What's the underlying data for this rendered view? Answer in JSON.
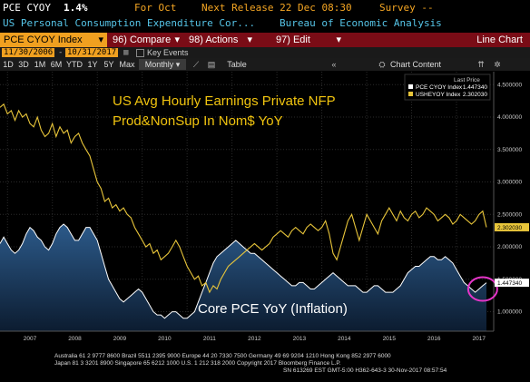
{
  "header": {
    "ticker": "PCE CYOY",
    "last": "1.4%",
    "period": "For Oct",
    "next_release": "Next Release 22 Dec 08:30",
    "survey": "Survey --",
    "description": "US Personal Consumption Expenditure Cor...",
    "source": "Bureau of Economic Analysis"
  },
  "toolbar": {
    "security": "PCE CYOY Index",
    "compare": "96) Compare",
    "actions": "98) Actions",
    "edit": "97) Edit",
    "chart_type": "Line Chart"
  },
  "date_bar": {
    "start": "11/30/2006",
    "end": "10/31/2017",
    "key_events": "Key Events"
  },
  "controls": {
    "ranges": [
      "1D",
      "3D",
      "1M",
      "6M",
      "YTD",
      "1Y",
      "5Y",
      "Max"
    ],
    "frequency": "Monthly",
    "table": "Table",
    "chart_content": "Chart Content"
  },
  "legend": {
    "title": "Last Price",
    "items": [
      {
        "name": "PCE CYOY Index",
        "value": "1.447340",
        "color": "#ffffff"
      },
      {
        "name": "USHEYOY Index",
        "value": "2.302030",
        "color": "#e8c53a"
      }
    ]
  },
  "annotations": {
    "earnings_line1": "US Avg Hourly Earnings Private NFP",
    "earnings_line2": "Prod&NonSup In Nom$ YoY",
    "pce_label": "Core PCE YoY (Inflation)"
  },
  "footer": {
    "line1": "Australia 61 2 9777 8600 Brazil 5511 2395 9000 Europe 44 20 7330 7500 Germany 49 69 9204 1210 Hong Kong 852 2977 6000",
    "line2": "Japan 81 3 3201 8900          Singapore 65 6212 1000          U.S. 1 212 318 2000          Copyright 2017 Bloomberg Finance L.P.",
    "line3": "SN 613269 EST  GMT-5:00 H362-643-3 30-Nov-2017 08:57:54"
  },
  "chart_data": {
    "type": "line",
    "x_ticks": [
      "2007",
      "2008",
      "2009",
      "2010",
      "2011",
      "2012",
      "2013",
      "2014",
      "2015",
      "2016",
      "2017"
    ],
    "y_ticks": [
      "1.000000",
      "1.500000",
      "2.000000",
      "2.500000",
      "3.000000",
      "3.500000",
      "4.000000",
      "4.500000"
    ],
    "ylim": [
      0.7,
      4.7
    ],
    "series": [
      {
        "name": "PCE CYOY Index",
        "color": "#ffffff",
        "area": true,
        "last": "1.447340",
        "start": "2006-11",
        "values": [
          2.05,
          2.15,
          2.05,
          1.95,
          1.9,
          1.95,
          2.05,
          2.2,
          2.3,
          2.25,
          2.15,
          2.1,
          2.0,
          1.95,
          2.05,
          2.2,
          2.3,
          2.35,
          2.3,
          2.2,
          2.1,
          2.1,
          2.2,
          2.3,
          2.3,
          2.2,
          2.1,
          1.9,
          1.7,
          1.5,
          1.4,
          1.3,
          1.2,
          1.15,
          1.2,
          1.25,
          1.3,
          1.35,
          1.3,
          1.2,
          1.1,
          1.0,
          0.95,
          0.95,
          0.9,
          0.95,
          1.0,
          1.0,
          0.95,
          0.9,
          0.9,
          0.95,
          1.0,
          1.15,
          1.3,
          1.45,
          1.6,
          1.75,
          1.85,
          1.9,
          1.95,
          2.0,
          2.05,
          2.1,
          2.05,
          2.0,
          1.95,
          1.9,
          1.9,
          1.85,
          1.8,
          1.75,
          1.7,
          1.65,
          1.6,
          1.55,
          1.5,
          1.45,
          1.4,
          1.4,
          1.45,
          1.45,
          1.4,
          1.35,
          1.35,
          1.4,
          1.45,
          1.5,
          1.55,
          1.6,
          1.55,
          1.5,
          1.45,
          1.4,
          1.4,
          1.4,
          1.35,
          1.3,
          1.3,
          1.35,
          1.4,
          1.4,
          1.35,
          1.3,
          1.3,
          1.3,
          1.35,
          1.4,
          1.5,
          1.6,
          1.65,
          1.7,
          1.7,
          1.75,
          1.8,
          1.85,
          1.85,
          1.8,
          1.8,
          1.85,
          1.8,
          1.75,
          1.65,
          1.55,
          1.45,
          1.4,
          1.35,
          1.3,
          1.35,
          1.4,
          1.447
        ]
      },
      {
        "name": "USHEYOY Index",
        "color": "#e8c53a",
        "last": "2.302030",
        "start": "2006-11",
        "values": [
          4.15,
          4.2,
          4.05,
          4.1,
          3.95,
          4.1,
          4.0,
          4.05,
          3.9,
          3.85,
          4.0,
          3.8,
          3.7,
          3.75,
          3.9,
          3.7,
          3.85,
          3.75,
          3.8,
          3.6,
          3.7,
          3.75,
          3.6,
          3.5,
          3.4,
          3.2,
          3.0,
          2.9,
          2.7,
          2.75,
          2.6,
          2.65,
          2.55,
          2.6,
          2.5,
          2.45,
          2.3,
          2.2,
          2.1,
          2.0,
          2.05,
          1.9,
          1.95,
          1.8,
          1.85,
          1.9,
          2.0,
          2.1,
          2.0,
          1.85,
          1.7,
          1.6,
          1.5,
          1.55,
          1.4,
          1.45,
          1.3,
          1.4,
          1.35,
          1.5,
          1.6,
          1.7,
          1.75,
          1.8,
          1.85,
          1.9,
          1.95,
          2.0,
          2.05,
          2.0,
          1.95,
          2.0,
          2.05,
          2.15,
          2.2,
          2.25,
          2.2,
          2.15,
          2.25,
          2.3,
          2.25,
          2.2,
          2.3,
          2.35,
          2.3,
          2.25,
          2.3,
          2.4,
          2.2,
          1.9,
          1.8,
          2.0,
          2.2,
          2.4,
          2.5,
          2.3,
          2.1,
          2.3,
          2.5,
          2.4,
          2.3,
          2.2,
          2.4,
          2.5,
          2.6,
          2.5,
          2.4,
          2.55,
          2.45,
          2.4,
          2.5,
          2.55,
          2.45,
          2.5,
          2.6,
          2.55,
          2.5,
          2.4,
          2.45,
          2.5,
          2.45,
          2.35,
          2.4,
          2.5,
          2.45,
          2.4,
          2.35,
          2.4,
          2.5,
          2.55,
          2.302
        ]
      }
    ]
  }
}
